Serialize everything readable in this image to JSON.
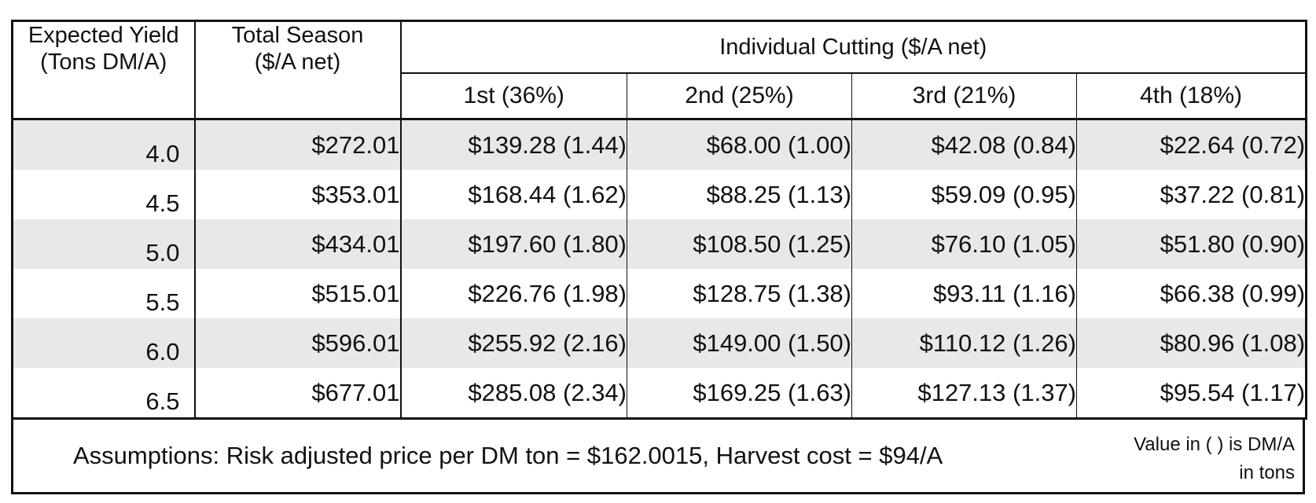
{
  "table": {
    "headers": {
      "expected_yield_line1": "Expected Yield",
      "expected_yield_line2": "(Tons DM/A)",
      "total_season_line1": "Total Season",
      "total_season_line2": "($/A net)",
      "individual_cutting": "Individual Cutting ($/A net)",
      "cuttings": [
        "1st (36%)",
        "2nd (25%)",
        "3rd (21%)",
        "4th (18%)"
      ]
    },
    "rows": [
      {
        "yield": "4.0",
        "total": "$272.01",
        "c1": "$139.28 (1.44)",
        "c2": "$68.00 (1.00)",
        "c3": "$42.08 (0.84)",
        "c4": "$22.64 (0.72)"
      },
      {
        "yield": "4.5",
        "total": "$353.01",
        "c1": "$168.44 (1.62)",
        "c2": "$88.25 (1.13)",
        "c3": "$59.09 (0.95)",
        "c4": "$37.22 (0.81)"
      },
      {
        "yield": "5.0",
        "total": "$434.01",
        "c1": "$197.60 (1.80)",
        "c2": "$108.50 (1.25)",
        "c3": "$76.10 (1.05)",
        "c4": "$51.80 (0.90)"
      },
      {
        "yield": "5.5",
        "total": "$515.01",
        "c1": "$226.76 (1.98)",
        "c2": "$128.75 (1.38)",
        "c3": "$93.11 (1.16)",
        "c4": "$66.38 (0.99)"
      },
      {
        "yield": "6.0",
        "total": "$596.01",
        "c1": "$255.92 (2.16)",
        "c2": "$149.00 (1.50)",
        "c3": "$110.12 (1.26)",
        "c4": "$80.96 (1.08)"
      },
      {
        "yield": "6.5",
        "total": "$677.01",
        "c1": "$285.08 (2.34)",
        "c2": "$169.25 (1.63)",
        "c3": "$127.13 (1.37)",
        "c4": "$95.54 (1.17)"
      }
    ]
  },
  "footer": {
    "assumptions": "Assumptions: Risk adjusted price per DM ton = $162.0015, Harvest cost = $94/A",
    "note_line1": "Value in ( ) is DM/A",
    "note_line2": "in tons"
  },
  "colors": {
    "row_shade": "#e8e8e8",
    "border": "#111111"
  }
}
